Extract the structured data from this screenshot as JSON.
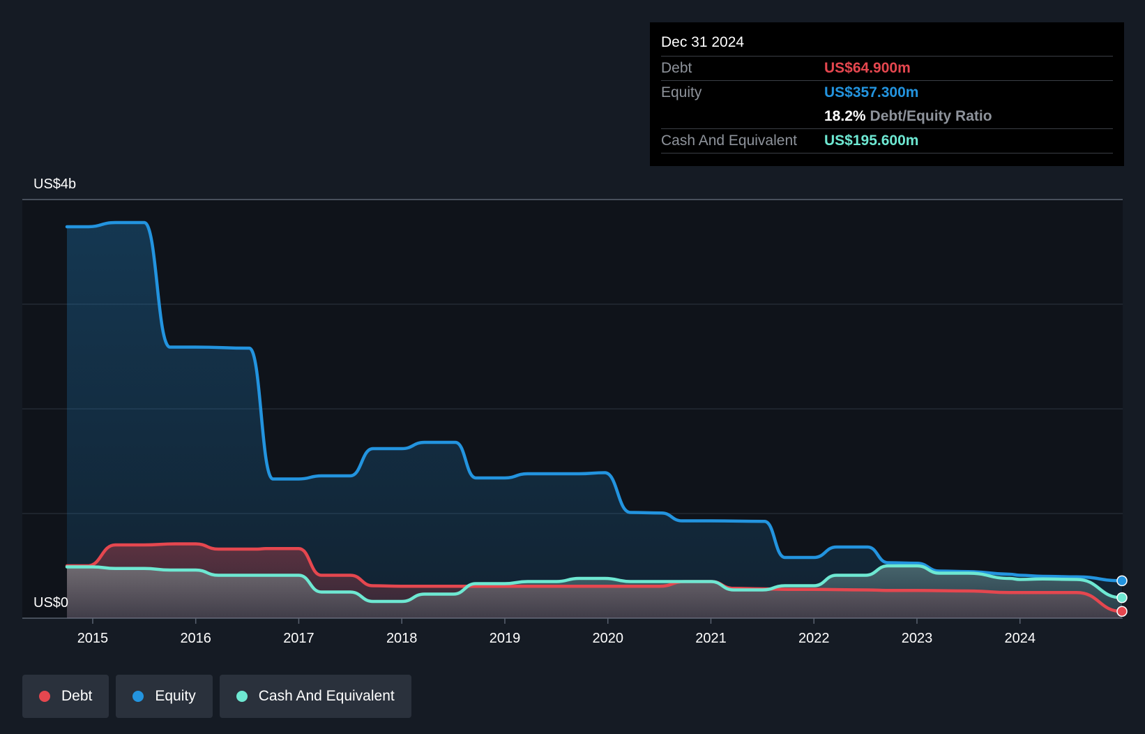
{
  "chart_data": {
    "type": "area",
    "y_axis": {
      "top_label": "US$4b",
      "bottom_label": "US$0",
      "ylim": [
        0,
        4000
      ],
      "gridlines": [
        0,
        1000,
        2000,
        3000,
        4000
      ]
    },
    "x_axis": {
      "ticks": [
        "2015",
        "2016",
        "2017",
        "2018",
        "2019",
        "2020",
        "2021",
        "2022",
        "2023",
        "2024"
      ],
      "xlim": [
        2014.75,
        2024.99
      ]
    },
    "series": [
      {
        "name": "Debt",
        "color": "#e5474f",
        "points": [
          [
            2014.75,
            500
          ],
          [
            2014.95,
            500
          ],
          [
            2015.22,
            700
          ],
          [
            2015.5,
            700
          ],
          [
            2015.8,
            710
          ],
          [
            2016.0,
            710
          ],
          [
            2016.22,
            660
          ],
          [
            2016.6,
            660
          ],
          [
            2016.68,
            665
          ],
          [
            2017.0,
            665
          ],
          [
            2017.22,
            410
          ],
          [
            2017.5,
            410
          ],
          [
            2017.72,
            310
          ],
          [
            2018.0,
            305
          ],
          [
            2019.0,
            305
          ],
          [
            2020.0,
            305
          ],
          [
            2020.5,
            305
          ],
          [
            2020.75,
            350
          ],
          [
            2021.0,
            350
          ],
          [
            2021.22,
            285
          ],
          [
            2021.5,
            280
          ],
          [
            2021.75,
            275
          ],
          [
            2022.0,
            275
          ],
          [
            2022.5,
            270
          ],
          [
            2022.75,
            265
          ],
          [
            2023.0,
            265
          ],
          [
            2023.5,
            260
          ],
          [
            2023.9,
            245
          ],
          [
            2024.0,
            245
          ],
          [
            2024.55,
            245
          ],
          [
            2024.99,
            64.9
          ]
        ]
      },
      {
        "name": "Equity",
        "color": "#2394df",
        "points": [
          [
            2014.75,
            3740
          ],
          [
            2014.95,
            3740
          ],
          [
            2015.22,
            3780
          ],
          [
            2015.5,
            3780
          ],
          [
            2015.75,
            2590
          ],
          [
            2016.0,
            2590
          ],
          [
            2016.52,
            2580
          ],
          [
            2016.75,
            1330
          ],
          [
            2017.0,
            1330
          ],
          [
            2017.22,
            1360
          ],
          [
            2017.5,
            1360
          ],
          [
            2017.72,
            1620
          ],
          [
            2018.0,
            1620
          ],
          [
            2018.22,
            1680
          ],
          [
            2018.52,
            1680
          ],
          [
            2018.72,
            1340
          ],
          [
            2019.0,
            1340
          ],
          [
            2019.22,
            1380
          ],
          [
            2019.5,
            1380
          ],
          [
            2019.72,
            1380
          ],
          [
            2019.97,
            1390
          ],
          [
            2020.22,
            1010
          ],
          [
            2020.52,
            1005
          ],
          [
            2020.72,
            930
          ],
          [
            2021.0,
            930
          ],
          [
            2021.52,
            925
          ],
          [
            2021.72,
            580
          ],
          [
            2022.0,
            580
          ],
          [
            2022.22,
            680
          ],
          [
            2022.52,
            680
          ],
          [
            2022.72,
            530
          ],
          [
            2023.0,
            525
          ],
          [
            2023.22,
            450
          ],
          [
            2023.5,
            445
          ],
          [
            2023.9,
            420
          ],
          [
            2024.0,
            410
          ],
          [
            2024.22,
            400
          ],
          [
            2024.55,
            395
          ],
          [
            2024.99,
            357.3
          ]
        ]
      },
      {
        "name": "Cash And Equivalent",
        "color": "#6ee8d2",
        "points": [
          [
            2014.75,
            490
          ],
          [
            2015.0,
            490
          ],
          [
            2015.22,
            475
          ],
          [
            2015.5,
            475
          ],
          [
            2015.75,
            460
          ],
          [
            2016.0,
            460
          ],
          [
            2016.22,
            410
          ],
          [
            2016.5,
            410
          ],
          [
            2017.0,
            410
          ],
          [
            2017.22,
            250
          ],
          [
            2017.5,
            250
          ],
          [
            2017.72,
            160
          ],
          [
            2018.0,
            160
          ],
          [
            2018.22,
            230
          ],
          [
            2018.5,
            230
          ],
          [
            2018.72,
            330
          ],
          [
            2019.0,
            330
          ],
          [
            2019.22,
            350
          ],
          [
            2019.5,
            350
          ],
          [
            2019.72,
            380
          ],
          [
            2019.97,
            380
          ],
          [
            2020.22,
            350
          ],
          [
            2020.5,
            350
          ],
          [
            2020.75,
            350
          ],
          [
            2021.0,
            350
          ],
          [
            2021.22,
            270
          ],
          [
            2021.5,
            270
          ],
          [
            2021.72,
            310
          ],
          [
            2022.0,
            310
          ],
          [
            2022.22,
            410
          ],
          [
            2022.5,
            410
          ],
          [
            2022.72,
            500
          ],
          [
            2023.0,
            500
          ],
          [
            2023.22,
            430
          ],
          [
            2023.5,
            430
          ],
          [
            2023.9,
            380
          ],
          [
            2024.0,
            370
          ],
          [
            2024.22,
            375
          ],
          [
            2024.55,
            370
          ],
          [
            2024.99,
            195.6
          ]
        ]
      }
    ]
  },
  "tooltip": {
    "date": "Dec 31 2024",
    "debt_label": "Debt",
    "debt_value": "US$64.900m",
    "equity_label": "Equity",
    "equity_value": "US$357.300m",
    "ratio_value": "18.2%",
    "ratio_label": "Debt/Equity Ratio",
    "cash_label": "Cash And Equivalent",
    "cash_value": "US$195.600m"
  },
  "legend": [
    {
      "label": "Debt",
      "color": "#e5474f"
    },
    {
      "label": "Equity",
      "color": "#2394df"
    },
    {
      "label": "Cash And Equivalent",
      "color": "#6ee8d2"
    }
  ]
}
